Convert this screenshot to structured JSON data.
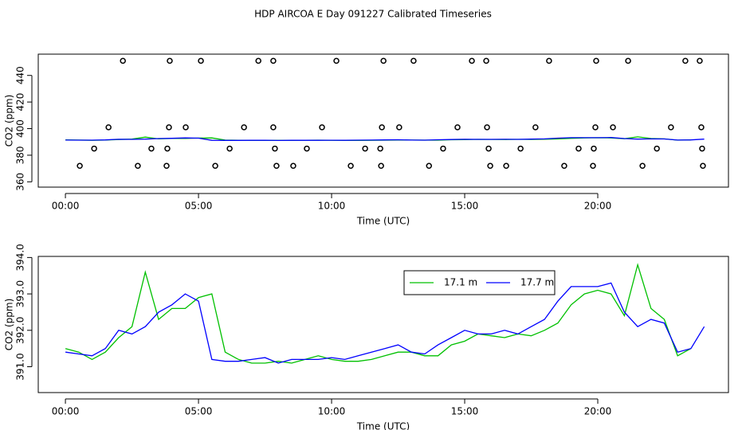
{
  "title": "HDP AIRCOA E  Day 091227  Calibrated Timeseries",
  "chart_data": [
    {
      "type": "scatter",
      "xlabel": "Time (UTC)",
      "ylabel": "CO2 (ppm)",
      "color": "#000000",
      "x": [
        2.16,
        3.92,
        5.09,
        7.25,
        7.81,
        10.18,
        11.95,
        13.08,
        15.27,
        15.81,
        18.17,
        19.94,
        21.14,
        23.29,
        23.83,
        1.62,
        3.89,
        4.52,
        6.71,
        7.81,
        9.64,
        11.89,
        12.54,
        14.73,
        15.84,
        17.66,
        19.91,
        20.57,
        22.75,
        23.89,
        1.08,
        3.23,
        3.83,
        6.17,
        7.87,
        9.07,
        11.26,
        11.83,
        14.19,
        15.9,
        17.1,
        19.28,
        19.85,
        22.22,
        23.92,
        0.54,
        2.72,
        3.8,
        5.63,
        7.93,
        8.56,
        10.72,
        11.86,
        13.66,
        15.96,
        16.56,
        18.74,
        19.82,
        21.68,
        23.95
      ],
      "values": [
        451,
        451,
        451,
        451,
        451,
        451,
        451,
        451,
        451,
        451,
        451,
        451,
        451,
        451,
        451,
        401,
        401,
        401,
        401,
        401,
        401,
        401,
        401,
        401,
        401,
        401,
        401,
        401,
        401,
        401,
        385,
        385,
        385,
        385,
        385,
        385,
        385,
        385,
        385,
        385,
        385,
        385,
        385,
        385,
        385,
        372,
        372,
        372,
        372,
        372,
        372,
        372,
        372,
        372,
        372,
        372,
        372,
        372,
        372,
        372
      ],
      "xlim": [
        -1.02,
        24.91
      ],
      "xticks": [
        {
          "value": 0,
          "label": "00:00"
        },
        {
          "value": 5,
          "label": "05:00"
        },
        {
          "value": 10,
          "label": "10:00"
        },
        {
          "value": 15,
          "label": "15:00"
        },
        {
          "value": 20,
          "label": "20:00"
        }
      ],
      "ylim": [
        356,
        456
      ],
      "yticks": [
        360,
        380,
        400,
        420,
        440
      ]
    },
    {
      "type": "line",
      "xlabel": "Time (UTC)",
      "ylabel": "CO2 (ppm)",
      "legend": "top",
      "x": [
        0,
        0.5,
        1,
        1.5,
        2,
        2.5,
        3,
        3.5,
        4,
        4.5,
        5,
        5.5,
        6,
        6.5,
        7,
        7.5,
        8,
        8.5,
        9,
        9.5,
        10,
        10.5,
        11,
        11.5,
        12,
        12.5,
        13,
        13.5,
        14,
        14.5,
        15,
        15.5,
        16,
        16.5,
        17,
        17.5,
        18,
        18.5,
        19,
        19.5,
        20,
        20.5,
        21,
        21.5,
        22,
        22.5,
        23,
        23.5,
        24
      ],
      "series": [
        {
          "name": "17.1 m",
          "color": "#00c000",
          "values": [
            391.5,
            391.4,
            391.2,
            391.4,
            391.8,
            392.1,
            393.6,
            392.3,
            392.6,
            392.6,
            392.9,
            393.0,
            391.4,
            391.2,
            391.1,
            391.1,
            391.15,
            391.1,
            391.2,
            391.3,
            391.2,
            391.15,
            391.15,
            391.2,
            391.3,
            391.4,
            391.4,
            391.3,
            391.3,
            391.6,
            391.7,
            391.9,
            391.85,
            391.8,
            391.9,
            391.85,
            392.0,
            392.2,
            392.7,
            393.0,
            393.1,
            393.0,
            392.4,
            393.8,
            392.6,
            392.3,
            391.3,
            391.5,
            null
          ]
        },
        {
          "name": "17.7 m",
          "color": "#0000ff",
          "values": [
            391.4,
            391.35,
            391.3,
            391.5,
            392.0,
            391.9,
            392.1,
            392.5,
            392.7,
            393.0,
            392.8,
            391.2,
            391.15,
            391.15,
            391.2,
            391.25,
            391.1,
            391.2,
            391.2,
            391.2,
            391.25,
            391.2,
            391.3,
            391.4,
            391.5,
            391.6,
            391.4,
            391.35,
            391.6,
            391.8,
            392.0,
            391.9,
            391.9,
            392.0,
            391.9,
            392.1,
            392.3,
            392.8,
            393.2,
            393.2,
            393.2,
            393.3,
            392.5,
            392.1,
            392.3,
            392.2,
            391.4,
            391.5,
            392.1
          ]
        }
      ],
      "xlim": [
        -1.02,
        24.91
      ],
      "xticks": [
        {
          "value": 0,
          "label": "00:00"
        },
        {
          "value": 5,
          "label": "05:00"
        },
        {
          "value": 10,
          "label": "10:00"
        },
        {
          "value": 15,
          "label": "15:00"
        },
        {
          "value": 20,
          "label": "20:00"
        }
      ],
      "ylim": [
        390.29,
        394.03
      ],
      "yticks": [
        {
          "value": 391,
          "label": "391.0"
        },
        {
          "value": 392,
          "label": "392.0"
        },
        {
          "value": 393,
          "label": "393.0"
        },
        {
          "value": 394,
          "label": "394.0"
        }
      ]
    }
  ]
}
